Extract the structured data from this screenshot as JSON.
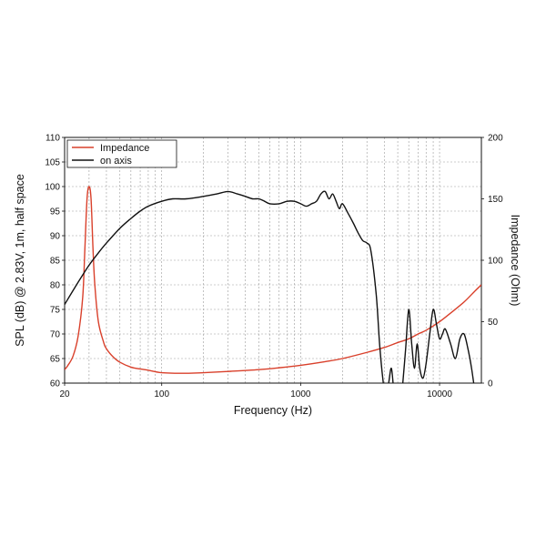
{
  "chart_data": {
    "type": "line",
    "title": "",
    "xlabel": "Frequency (Hz)",
    "ylabel_left": "SPL (dB) @ 2.83V, 1m, half space",
    "ylabel_right": "Impedance (Ohm)",
    "x_scale": "log",
    "xlim": [
      20,
      20000
    ],
    "ylim_left": [
      60,
      110
    ],
    "ylim_right": [
      0,
      200
    ],
    "x_ticks": [
      20,
      100,
      1000,
      10000
    ],
    "x_tick_labels": [
      "20",
      "100",
      "1000",
      "10000"
    ],
    "y_left_ticks": [
      60,
      65,
      70,
      75,
      80,
      85,
      90,
      95,
      100,
      105,
      110
    ],
    "y_left_tick_labels": [
      "60",
      "65",
      "70",
      "75",
      "80",
      "85",
      "90",
      "95",
      "100",
      "105",
      "110"
    ],
    "y_right_ticks": [
      0,
      50,
      100,
      150,
      200
    ],
    "y_right_tick_labels": [
      "0",
      "50",
      "100",
      "150",
      "200"
    ],
    "grid": true,
    "legend_position": "top-left",
    "series": [
      {
        "name": "Impedance",
        "axis": "right",
        "color": "#d9402b",
        "x": [
          20,
          21,
          23,
          25,
          27,
          28,
          29,
          30,
          31,
          32,
          33,
          35,
          38,
          40,
          45,
          50,
          60,
          70,
          80,
          100,
          150,
          200,
          300,
          500,
          700,
          1000,
          1500,
          2000,
          3000,
          4000,
          5000,
          6000,
          7000,
          8000,
          10000,
          12000,
          15000,
          18000,
          20000
        ],
        "values": [
          11,
          14,
          22,
          38,
          70,
          110,
          150,
          160,
          150,
          110,
          80,
          50,
          34,
          28,
          21,
          17,
          13,
          11.5,
          10.5,
          8.5,
          8,
          8.5,
          9.5,
          11,
          12.5,
          14.5,
          17.5,
          20,
          25,
          29,
          33,
          36,
          40,
          43,
          50,
          57,
          66,
          75,
          80
        ]
      },
      {
        "name": "on axis",
        "axis": "left",
        "color": "#111111",
        "x": [
          20,
          25,
          30,
          35,
          40,
          50,
          60,
          70,
          80,
          100,
          120,
          150,
          200,
          250,
          300,
          350,
          400,
          450,
          500,
          550,
          600,
          700,
          800,
          900,
          1000,
          1100,
          1200,
          1300,
          1400,
          1500,
          1600,
          1700,
          1800,
          1900,
          2000,
          2200,
          2400,
          2600,
          2800,
          3000,
          3200,
          3500,
          3700,
          3900,
          4100,
          4300,
          4500,
          4700,
          4900,
          5100,
          5400,
          5700,
          6000,
          6300,
          6600,
          6900,
          7200,
          7600,
          8000,
          8500,
          9000,
          9500,
          10000,
          10500,
          11000,
          12000,
          13000,
          14000,
          15000,
          16000,
          17000,
          18000
        ],
        "values": [
          76,
          80.5,
          84,
          86.5,
          88.5,
          91.5,
          93.5,
          95,
          96,
          97,
          97.5,
          97.5,
          98,
          98.5,
          99,
          98.5,
          98,
          97.5,
          97.5,
          97,
          96.5,
          96.5,
          97,
          97,
          96.5,
          96,
          96.5,
          97,
          98.5,
          99,
          97.5,
          98.5,
          97,
          95.5,
          96.5,
          94.5,
          92.5,
          90.5,
          89,
          88.5,
          87,
          78,
          68,
          61,
          57,
          60,
          63,
          58,
          55,
          52,
          59,
          67,
          75,
          68,
          63,
          68,
          63,
          61,
          64,
          70,
          75,
          72,
          69,
          70,
          71,
          68,
          65,
          69,
          70,
          67,
          63,
          58
        ]
      }
    ]
  }
}
